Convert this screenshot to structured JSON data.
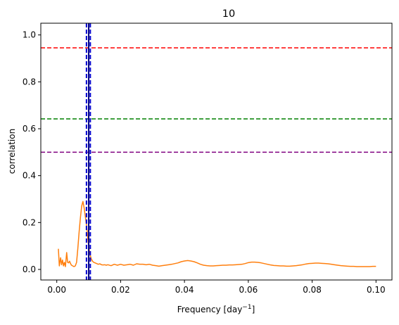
{
  "chart_data": {
    "type": "line",
    "title": "10",
    "xlabel_main": "Frequency [day",
    "xlabel_exp": "−1",
    "xlabel_close": "]",
    "ylabel": "correlation",
    "xlim": [
      -0.005,
      0.105
    ],
    "ylim": [
      -0.045,
      1.05
    ],
    "xticks": [
      0.0,
      0.02,
      0.04,
      0.06,
      0.08,
      0.1
    ],
    "xtick_labels": [
      "0.00",
      "0.02",
      "0.04",
      "0.06",
      "0.08",
      "0.10"
    ],
    "yticks": [
      0.0,
      0.2,
      0.4,
      0.6,
      0.8,
      1.0
    ],
    "ytick_labels": [
      "0.0",
      "0.2",
      "0.4",
      "0.6",
      "0.8",
      "1.0"
    ],
    "grid": false,
    "series": [
      {
        "color": "#ff7f0e",
        "x": [
          0.0005,
          0.0008,
          0.0012,
          0.0015,
          0.0018,
          0.0021,
          0.0024,
          0.0027,
          0.0031,
          0.0034,
          0.0037,
          0.004,
          0.0043,
          0.0046,
          0.005,
          0.0054,
          0.0058,
          0.0062,
          0.0066,
          0.007,
          0.0074,
          0.0078,
          0.0082,
          0.0086,
          0.009,
          0.0093,
          0.0096,
          0.0099,
          0.0102,
          0.0105,
          0.0108,
          0.0112,
          0.0116,
          0.012,
          0.0125,
          0.013,
          0.0135,
          0.014,
          0.0145,
          0.015,
          0.0155,
          0.016,
          0.017,
          0.018,
          0.019,
          0.02,
          0.021,
          0.022,
          0.023,
          0.024,
          0.025,
          0.026,
          0.027,
          0.028,
          0.029,
          0.03,
          0.031,
          0.032,
          0.033,
          0.034,
          0.035,
          0.036,
          0.037,
          0.038,
          0.039,
          0.04,
          0.041,
          0.042,
          0.043,
          0.044,
          0.045,
          0.046,
          0.047,
          0.048,
          0.049,
          0.05,
          0.051,
          0.052,
          0.053,
          0.054,
          0.055,
          0.056,
          0.057,
          0.058,
          0.059,
          0.06,
          0.061,
          0.062,
          0.063,
          0.064,
          0.065,
          0.066,
          0.067,
          0.068,
          0.069,
          0.07,
          0.071,
          0.072,
          0.073,
          0.074,
          0.075,
          0.076,
          0.077,
          0.078,
          0.079,
          0.08,
          0.081,
          0.082,
          0.083,
          0.084,
          0.085,
          0.086,
          0.087,
          0.088,
          0.089,
          0.09,
          0.091,
          0.092,
          0.093,
          0.094,
          0.095,
          0.096,
          0.097,
          0.098,
          0.099,
          0.1
        ],
        "y": [
          0.088,
          0.015,
          0.05,
          0.02,
          0.04,
          0.015,
          0.03,
          0.012,
          0.072,
          0.03,
          0.028,
          0.035,
          0.025,
          0.018,
          0.015,
          0.012,
          0.015,
          0.03,
          0.09,
          0.16,
          0.22,
          0.27,
          0.29,
          0.26,
          0.22,
          0.19,
          0.15,
          0.11,
          0.08,
          0.06,
          0.045,
          0.035,
          0.03,
          0.028,
          0.025,
          0.022,
          0.024,
          0.02,
          0.019,
          0.02,
          0.018,
          0.02,
          0.016,
          0.022,
          0.018,
          0.022,
          0.018,
          0.02,
          0.022,
          0.018,
          0.024,
          0.022,
          0.022,
          0.02,
          0.022,
          0.018,
          0.016,
          0.014,
          0.016,
          0.018,
          0.02,
          0.022,
          0.025,
          0.028,
          0.033,
          0.036,
          0.038,
          0.036,
          0.033,
          0.028,
          0.022,
          0.018,
          0.016,
          0.015,
          0.015,
          0.016,
          0.017,
          0.018,
          0.018,
          0.019,
          0.019,
          0.02,
          0.021,
          0.022,
          0.025,
          0.029,
          0.031,
          0.031,
          0.03,
          0.028,
          0.025,
          0.022,
          0.019,
          0.017,
          0.016,
          0.015,
          0.015,
          0.014,
          0.014,
          0.015,
          0.016,
          0.018,
          0.02,
          0.023,
          0.025,
          0.026,
          0.027,
          0.027,
          0.026,
          0.025,
          0.024,
          0.022,
          0.02,
          0.018,
          0.016,
          0.015,
          0.014,
          0.013,
          0.013,
          0.012,
          0.012,
          0.012,
          0.012,
          0.012,
          0.013,
          0.013
        ]
      }
    ],
    "hlines": [
      {
        "y": 0.945,
        "color": "#ff0000",
        "style": "dashed"
      },
      {
        "y": 0.642,
        "color": "#008000",
        "style": "dashed"
      },
      {
        "y": 0.5,
        "color": "#800080",
        "style": "dashed"
      }
    ],
    "vlines": [
      {
        "x": 0.0093,
        "color": "#0000cd",
        "style": "dashed"
      },
      {
        "x": 0.01,
        "color": "#000080",
        "style": "solid"
      },
      {
        "x": 0.0105,
        "color": "#0000cd",
        "style": "dashed"
      }
    ]
  }
}
